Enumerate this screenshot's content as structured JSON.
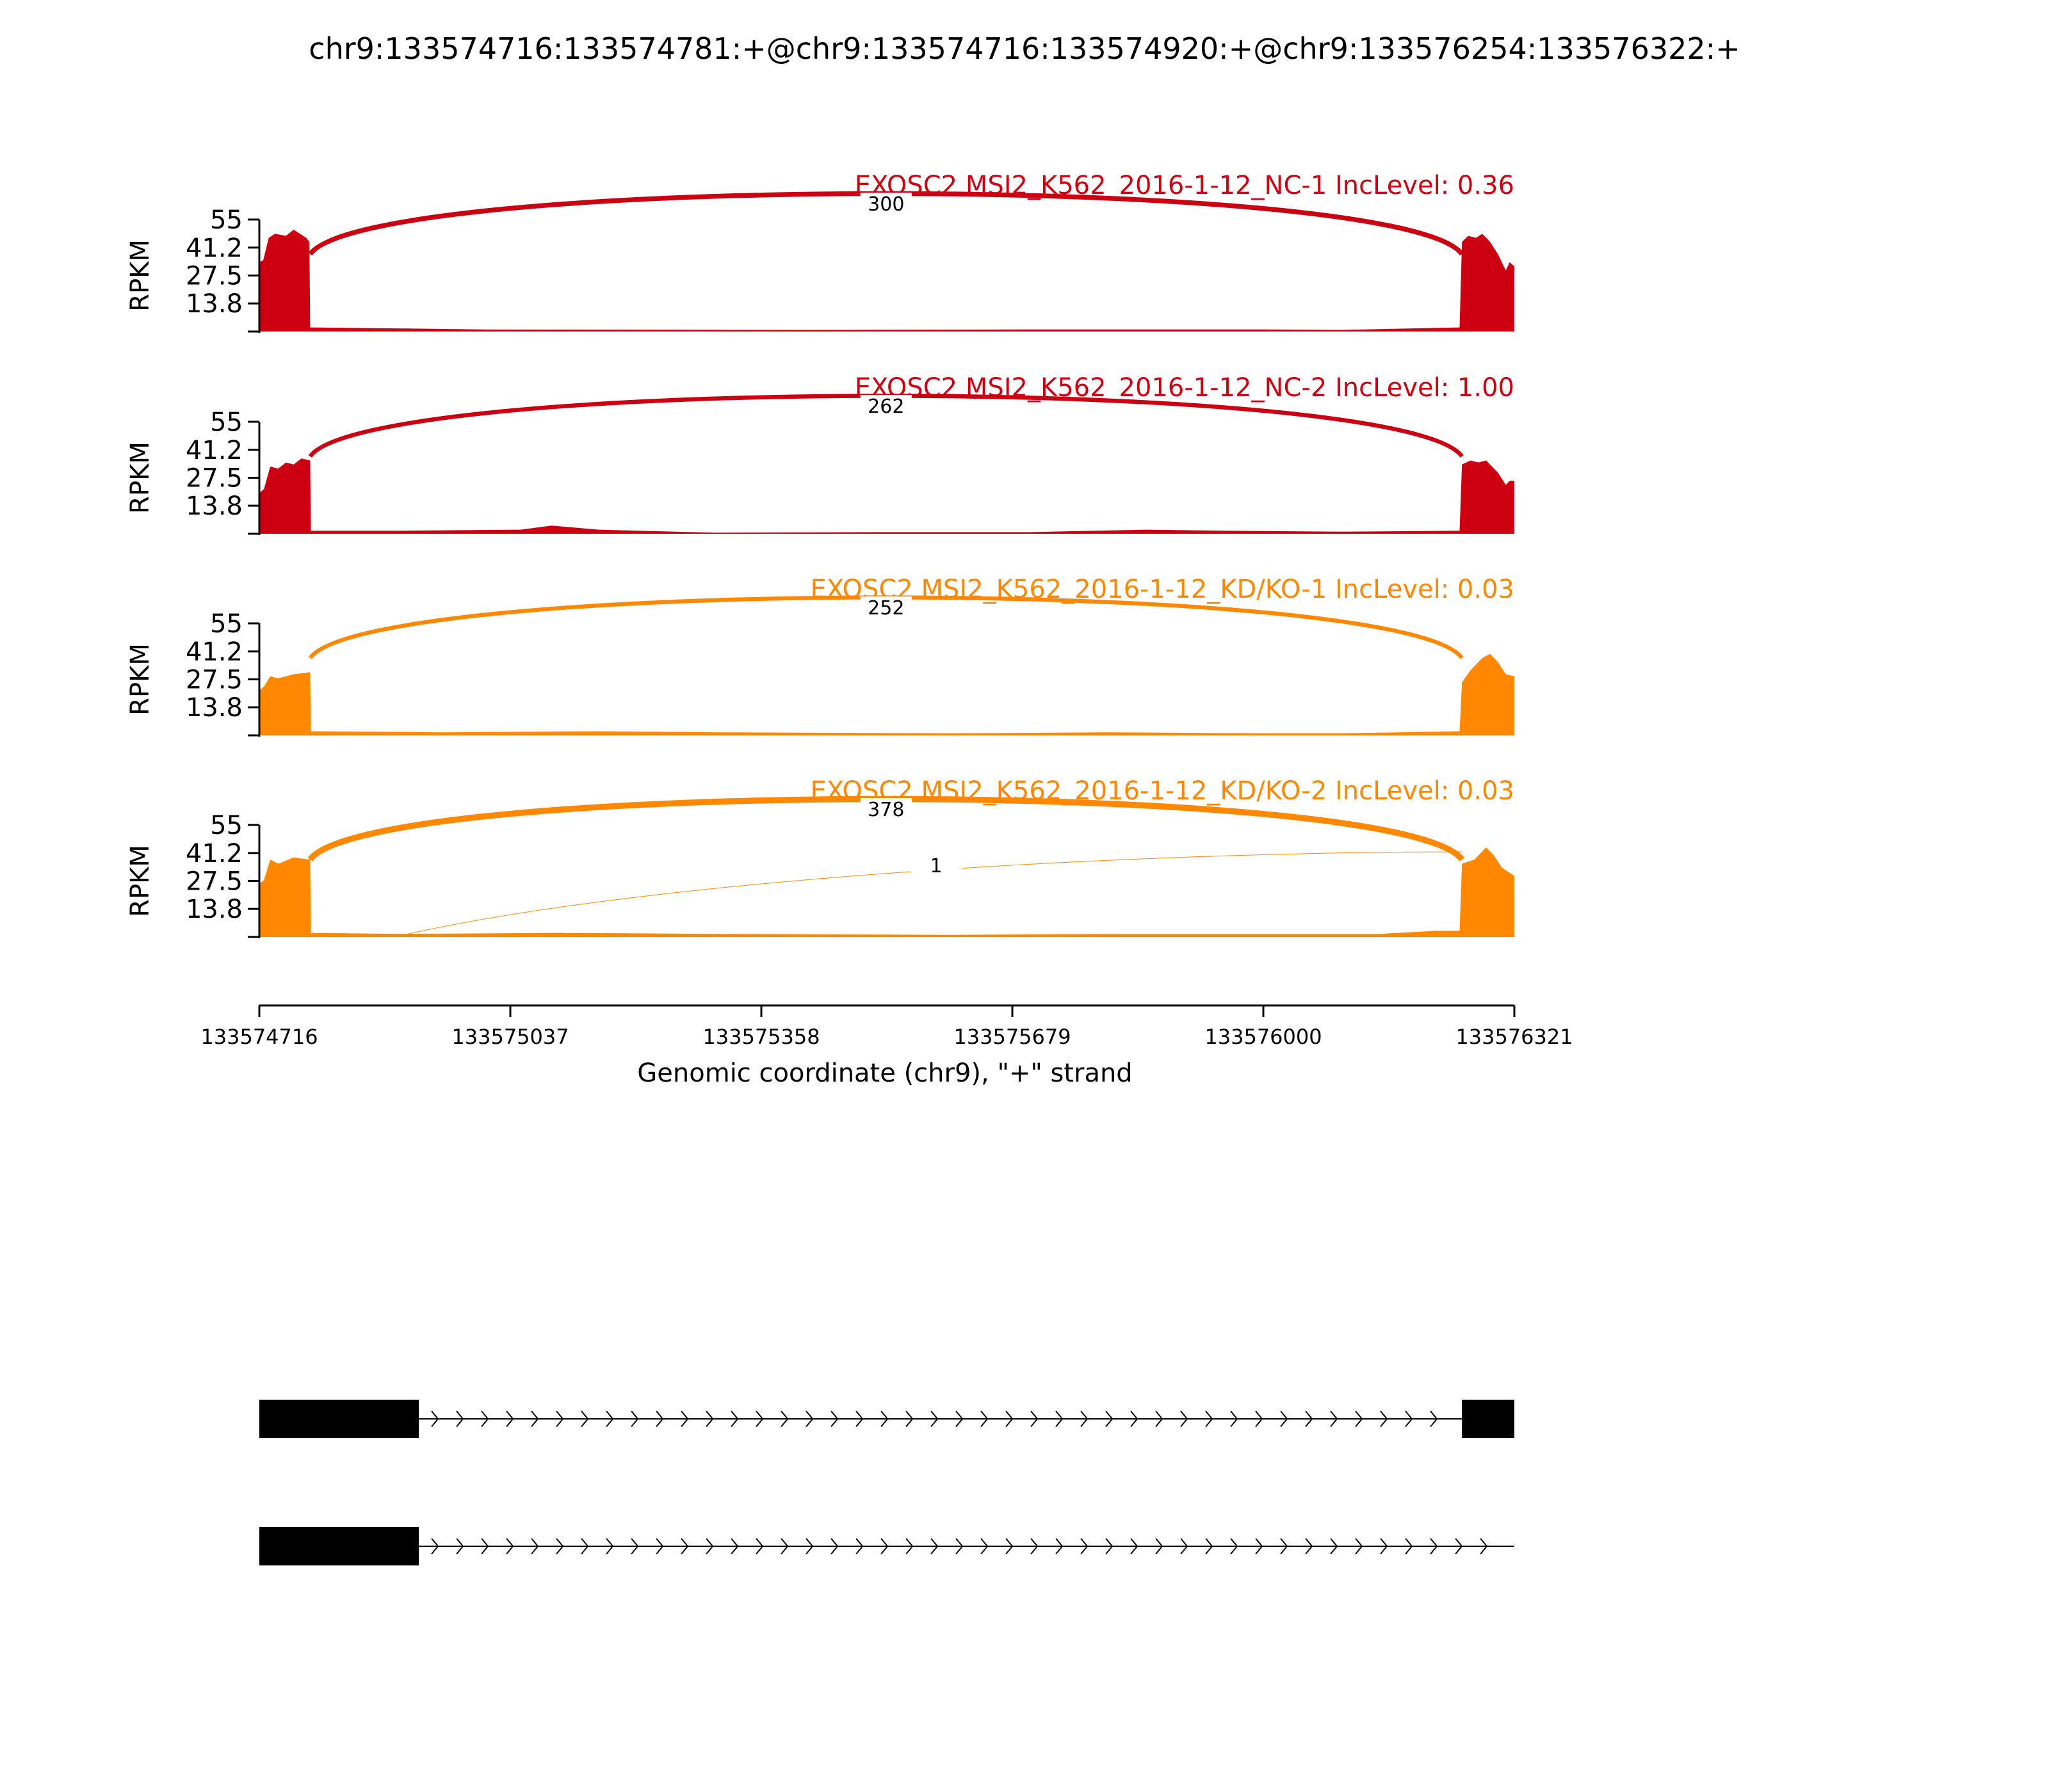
{
  "figure_title": "chr9:133574716:133574781:+@chr9:133574716:133574920:+@chr9:133576254:133576322:+",
  "chart_data": {
    "type": "area",
    "ylabel": "RPKM",
    "ylim": [
      0,
      55
    ],
    "yticks": [
      "13.8",
      "27.5",
      "41.2",
      "55"
    ],
    "xlabel": "Genomic coordinate (chr9), \"+\" strand",
    "xlim": [
      133574716,
      133576321
    ],
    "xticks": [
      "133574716",
      "133575037",
      "133575358",
      "133575679",
      "133576000",
      "133576321"
    ],
    "exons": [
      {
        "start": 133574716,
        "end": 133574781
      },
      {
        "start": 133574716,
        "end": 133574920
      },
      {
        "start": 133576254,
        "end": 133576322
      }
    ],
    "samples": [
      {
        "label": "EXOSC2 MSI2_K562_2016-1-12_NC-1 IncLevel: 0.36",
        "color": "#cc0011",
        "coverage": [
          [
            133574716,
            34
          ],
          [
            133574721,
            35
          ],
          [
            133574728,
            46
          ],
          [
            133574736,
            48
          ],
          [
            133574750,
            47
          ],
          [
            133574760,
            50
          ],
          [
            133574768,
            48
          ],
          [
            133574776,
            46
          ],
          [
            133574780,
            44
          ],
          [
            133574781,
            2
          ],
          [
            133574900,
            1.5
          ],
          [
            133575000,
            1
          ],
          [
            133575400,
            0.8
          ],
          [
            133575700,
            1
          ],
          [
            133576000,
            1
          ],
          [
            133576100,
            0.8
          ],
          [
            133576251,
            2
          ],
          [
            133576254,
            44
          ],
          [
            133576262,
            47
          ],
          [
            133576272,
            46
          ],
          [
            133576280,
            48
          ],
          [
            133576290,
            44
          ],
          [
            133576300,
            38
          ],
          [
            133576310,
            30
          ],
          [
            133576315,
            34
          ],
          [
            133576321,
            32
          ]
        ],
        "junctions": [
          {
            "label": "300",
            "from": 133574781,
            "to": 133576254
          }
        ]
      },
      {
        "label": "EXOSC2 MSI2_K562_2016-1-12_NC-2 IncLevel: 1.00",
        "color": "#cc0011",
        "coverage": [
          [
            133574716,
            20
          ],
          [
            133574722,
            22
          ],
          [
            133574730,
            33
          ],
          [
            133574740,
            32
          ],
          [
            133574750,
            35
          ],
          [
            133574760,
            34
          ],
          [
            133574770,
            37
          ],
          [
            133574781,
            36
          ],
          [
            133574782,
            1.5
          ],
          [
            133574900,
            1.5
          ],
          [
            133575050,
            2
          ],
          [
            133575090,
            4
          ],
          [
            133575150,
            2
          ],
          [
            133575300,
            0.5
          ],
          [
            133575500,
            0.8
          ],
          [
            133575700,
            0.8
          ],
          [
            133575850,
            2
          ],
          [
            133575950,
            1.5
          ],
          [
            133576100,
            1
          ],
          [
            133576251,
            1.5
          ],
          [
            133576254,
            34
          ],
          [
            133576265,
            36
          ],
          [
            133576275,
            35
          ],
          [
            133576285,
            36
          ],
          [
            133576300,
            30
          ],
          [
            133576310,
            24
          ],
          [
            133576315,
            26
          ],
          [
            133576321,
            26
          ]
        ],
        "junctions": [
          {
            "label": "262",
            "from": 133574781,
            "to": 133576254
          }
        ]
      },
      {
        "label": "EXOSC2 MSI2_K562_2016-1-12_KD/KO-1 IncLevel: 0.03",
        "color": "#ff8800",
        "coverage": [
          [
            133574716,
            22
          ],
          [
            133574722,
            24
          ],
          [
            133574730,
            29
          ],
          [
            133574740,
            28
          ],
          [
            133574760,
            30
          ],
          [
            133574781,
            31
          ],
          [
            133574782,
            2
          ],
          [
            133574950,
            1.5
          ],
          [
            133575150,
            2
          ],
          [
            133575300,
            1.5
          ],
          [
            133575600,
            1
          ],
          [
            133575800,
            1.5
          ],
          [
            133576000,
            1
          ],
          [
            133576100,
            1
          ],
          [
            133576251,
            2
          ],
          [
            133576254,
            26
          ],
          [
            133576265,
            32
          ],
          [
            133576280,
            38
          ],
          [
            133576290,
            40
          ],
          [
            133576300,
            36
          ],
          [
            133576310,
            30
          ],
          [
            133576321,
            29
          ]
        ],
        "junctions": [
          {
            "label": "252",
            "from": 133574781,
            "to": 133576254
          }
        ]
      },
      {
        "label": "EXOSC2 MSI2_K562_2016-1-12_KD/KO-2 IncLevel: 0.03",
        "color": "#ff8800",
        "coverage": [
          [
            133574716,
            26
          ],
          [
            133574722,
            28
          ],
          [
            133574730,
            38
          ],
          [
            133574740,
            36
          ],
          [
            133574760,
            39
          ],
          [
            133574781,
            38
          ],
          [
            133574782,
            2
          ],
          [
            133574900,
            1.5
          ],
          [
            133575100,
            2
          ],
          [
            133575300,
            1.5
          ],
          [
            133575600,
            1
          ],
          [
            133575800,
            1.5
          ],
          [
            133576000,
            1.5
          ],
          [
            133576150,
            1.5
          ],
          [
            133576220,
            3
          ],
          [
            133576251,
            3
          ],
          [
            133576254,
            36
          ],
          [
            133576270,
            38
          ],
          [
            133576285,
            44
          ],
          [
            133576295,
            40
          ],
          [
            133576305,
            34
          ],
          [
            133576321,
            30
          ]
        ],
        "junctions": [
          {
            "label": "378",
            "from": 133574781,
            "to": 133576254
          },
          {
            "label": "1",
            "from": 133574900,
            "to": 133576254
          }
        ]
      }
    ],
    "transcripts": [
      {
        "exons": [
          [
            133574716,
            133574920
          ],
          [
            133576254,
            133576321
          ]
        ],
        "strand": "+"
      },
      {
        "exons": [
          [
            133574716,
            133574920
          ]
        ],
        "strand": "+"
      }
    ]
  }
}
